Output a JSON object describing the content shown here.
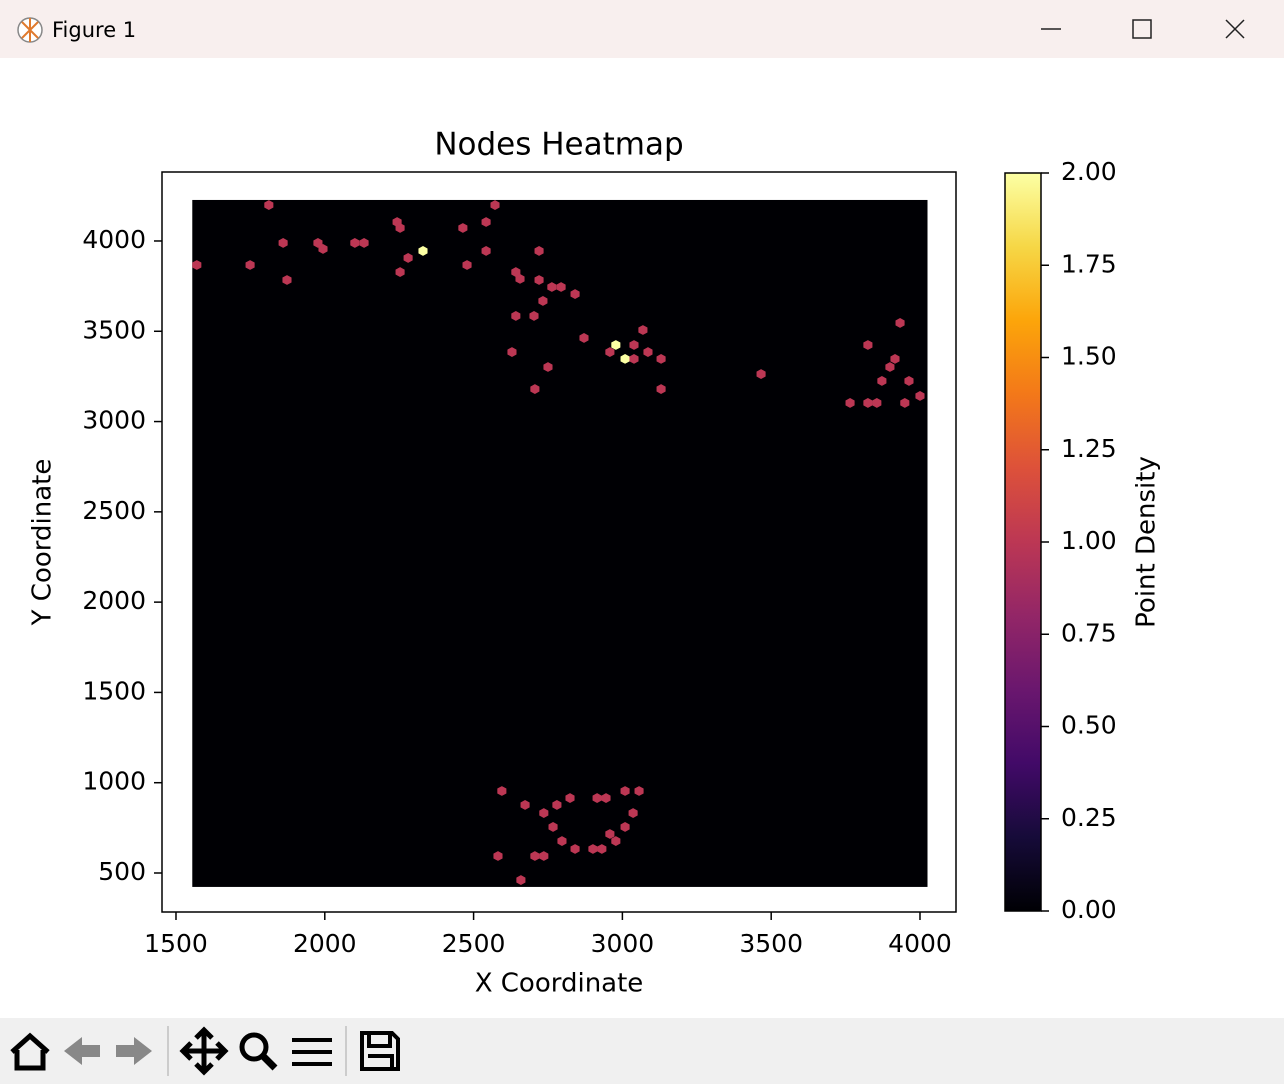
{
  "window": {
    "title": "Figure 1"
  },
  "chart_data": {
    "type": "hexbin",
    "title": "Nodes Heatmap",
    "x_label": "X Coordinate",
    "y_label": "Y Coordinate",
    "colorbar_label": "Point Density",
    "colormap": "inferno",
    "gridsize": 80,
    "extent": [
      1570,
      4010,
      450,
      4200
    ],
    "x": [
      1812,
      2572,
      1570,
      1749,
      1860,
      1977,
      1994,
      2101,
      2132,
      2243,
      2253,
      2330,
      2280,
      2253,
      2464,
      2542,
      2542,
      2478,
      1873,
      2720,
      2642,
      2656,
      2720,
      2763,
      2794,
      2841,
      2733,
      2642,
      2703,
      2871,
      3069,
      2978,
      3039,
      2958,
      3009,
      3086,
      3039,
      3130,
      2629,
      2750,
      2706,
      3130,
      3466,
      3825,
      3933,
      3916,
      3899,
      3872,
      3963,
      4000,
      3765,
      3825,
      3855,
      3949,
      2595,
      2673,
      2780,
      2824,
      2915,
      2945,
      3009,
      3056,
      2736,
      3036,
      2767,
      3009,
      2958,
      2978,
      2797,
      2841,
      2901,
      2931,
      2582,
      2706,
      2736,
      2659
    ],
    "y": [
      4199,
      4199,
      3867,
      3867,
      3989,
      3989,
      3956,
      3989,
      3989,
      4105,
      4072,
      3945,
      3906,
      3828,
      4072,
      4105,
      3945,
      3867,
      3784,
      3945,
      3828,
      3790,
      3784,
      3745,
      3745,
      3706,
      3668,
      3585,
      3585,
      3463,
      3507,
      3424,
      3424,
      3385,
      3347,
      3385,
      3347,
      3347,
      3385,
      3302,
      3180,
      3180,
      3263,
      3424,
      3546,
      3347,
      3302,
      3225,
      3225,
      3142,
      3103,
      3103,
      3103,
      3103,
      954,
      877,
      877,
      915,
      915,
      915,
      954,
      954,
      832,
      832,
      755,
      755,
      716,
      677,
      677,
      633,
      633,
      633,
      594,
      594,
      594,
      461
    ],
    "values": [
      1,
      1,
      1,
      1,
      1,
      1,
      1,
      1,
      1,
      1,
      1,
      2,
      1,
      1,
      1,
      1,
      1,
      1,
      1,
      1,
      1,
      1,
      1,
      1,
      1,
      1,
      1,
      1,
      1,
      1,
      1,
      2,
      1,
      1,
      2,
      1,
      1,
      1,
      1,
      1,
      1,
      1,
      1,
      1,
      1,
      1,
      1,
      1,
      1,
      1,
      1,
      1,
      1,
      1,
      1,
      1,
      1,
      1,
      1,
      1,
      1,
      1,
      1,
      1,
      1,
      1,
      1,
      1,
      1,
      1,
      1,
      1,
      1,
      1,
      1,
      1
    ],
    "xlim": [
      1453,
      4121
    ],
    "ylim": [
      284,
      4382
    ],
    "xticks": [
      1500,
      2000,
      2500,
      3000,
      3500,
      4000
    ],
    "yticks": [
      500,
      1000,
      1500,
      2000,
      2500,
      3000,
      3500,
      4000
    ],
    "clim": [
      0,
      2
    ],
    "cticks": [
      {
        "value": 0,
        "label": "0.00"
      },
      {
        "value": 0.25,
        "label": "0.25"
      },
      {
        "value": 0.5,
        "label": "0.50"
      },
      {
        "value": 0.75,
        "label": "0.75"
      },
      {
        "value": 1,
        "label": "1.00"
      },
      {
        "value": 1.25,
        "label": "1.25"
      },
      {
        "value": 1.5,
        "label": "1.50"
      },
      {
        "value": 1.75,
        "label": "1.75"
      },
      {
        "value": 2,
        "label": "2.00"
      }
    ]
  }
}
